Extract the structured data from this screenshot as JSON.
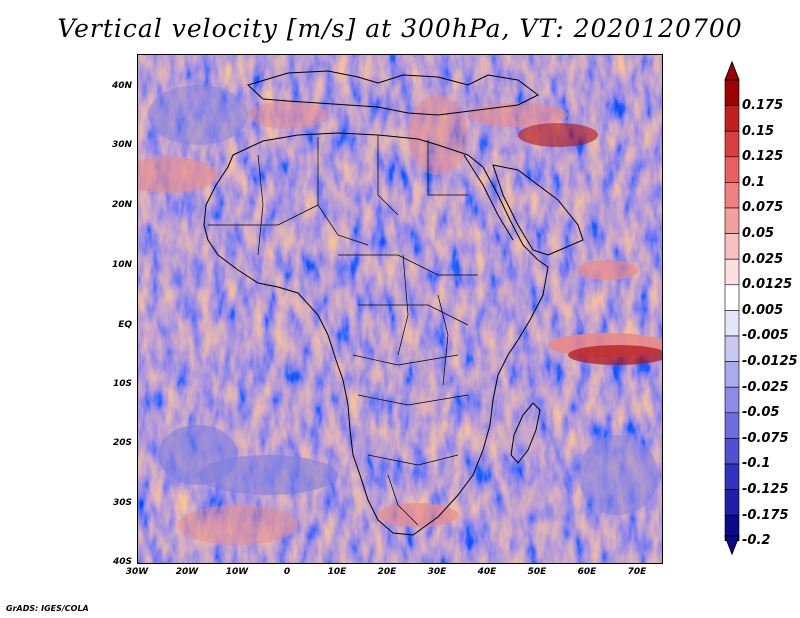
{
  "title": "Vertical velocity [m/s] at 300hPa, VT: 2020120700",
  "credit": "GrADS: IGES/COLA",
  "map": {
    "region": "Africa",
    "lon_range": [
      -30,
      75
    ],
    "lat_range": [
      -40,
      45
    ],
    "x_ticks": [
      "30W",
      "20W",
      "10W",
      "0",
      "10E",
      "20E",
      "30E",
      "40E",
      "50E",
      "60E",
      "70E"
    ],
    "y_ticks": [
      "40N",
      "30N",
      "20N",
      "10N",
      "EQ",
      "10S",
      "20S",
      "30S",
      "40S"
    ],
    "field_colors": {
      "positive": "#e88a8a",
      "negative": "#7f7fe0",
      "neutral": "#ffffff"
    }
  },
  "colorbar": {
    "levels": [
      "0.175",
      "0.15",
      "0.125",
      "0.1",
      "0.075",
      "0.05",
      "0.025",
      "0.0125",
      "0.005",
      "-0.005",
      "-0.0125",
      "-0.025",
      "-0.05",
      "-0.075",
      "-0.1",
      "-0.125",
      "-0.175",
      "-0.2"
    ],
    "colors": [
      "#a00000",
      "#c02020",
      "#d84040",
      "#e86060",
      "#f08080",
      "#f4a0a0",
      "#f8c0c0",
      "#fbe0e0",
      "#ffffff",
      "#e6e6fa",
      "#c8c8f4",
      "#aaaaee",
      "#8c8ce6",
      "#6e6ede",
      "#5050d2",
      "#3232c0",
      "#1e1eaa",
      "#0a0a8c"
    ],
    "top_arrow_color": "#a00000",
    "bottom_arrow_color": "#0a0a8c"
  }
}
